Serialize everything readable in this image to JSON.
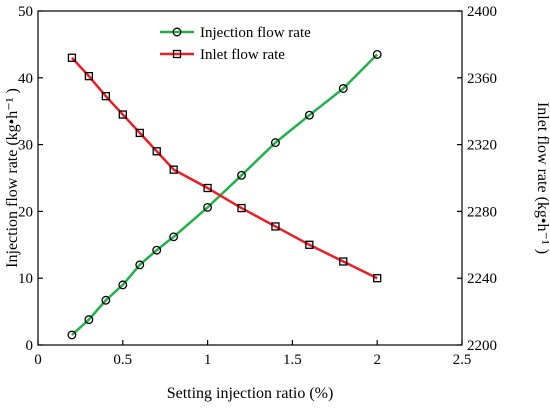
{
  "chart_data": {
    "type": "line",
    "xlabel": "Setting injection ratio (%)",
    "ylabel_left": "Injection flow rate (kg•h⁻¹ )",
    "ylabel_right": "Inlet flow rate (kg•h⁻¹ )",
    "xlim": [
      0,
      2.5
    ],
    "ylim_left": [
      0,
      50
    ],
    "ylim_right": [
      2200,
      2400
    ],
    "xticks": [
      "0",
      "0.5",
      "1",
      "1.5",
      "2",
      "2.5"
    ],
    "yticks_left": [
      "0",
      "10",
      "20",
      "30",
      "40",
      "50"
    ],
    "yticks_right": [
      "2200",
      "2240",
      "2280",
      "2320",
      "2360",
      "2400"
    ],
    "legend_position": "top-center",
    "grid": false,
    "series": [
      {
        "name": "Injection flow rate",
        "axis": "left",
        "color": "#22b04a",
        "marker": "circle",
        "x": [
          0.2,
          0.3,
          0.4,
          0.5,
          0.6,
          0.7,
          0.8,
          1.0,
          1.2,
          1.4,
          1.6,
          1.8,
          2.0
        ],
        "y": [
          1.5,
          3.8,
          6.7,
          9.0,
          12.0,
          14.2,
          16.2,
          20.6,
          25.4,
          30.3,
          34.4,
          38.4,
          43.5
        ]
      },
      {
        "name": "Inlet flow rate",
        "axis": "right",
        "color": "#ee1c24",
        "marker": "square",
        "x": [
          0.2,
          0.3,
          0.4,
          0.5,
          0.6,
          0.7,
          0.8,
          1.0,
          1.2,
          1.4,
          1.6,
          1.8,
          2.0
        ],
        "y": [
          2372,
          2361,
          2349,
          2338,
          2327,
          2316,
          2305,
          2294,
          2282,
          2271,
          2260,
          2250,
          2240
        ]
      }
    ]
  }
}
